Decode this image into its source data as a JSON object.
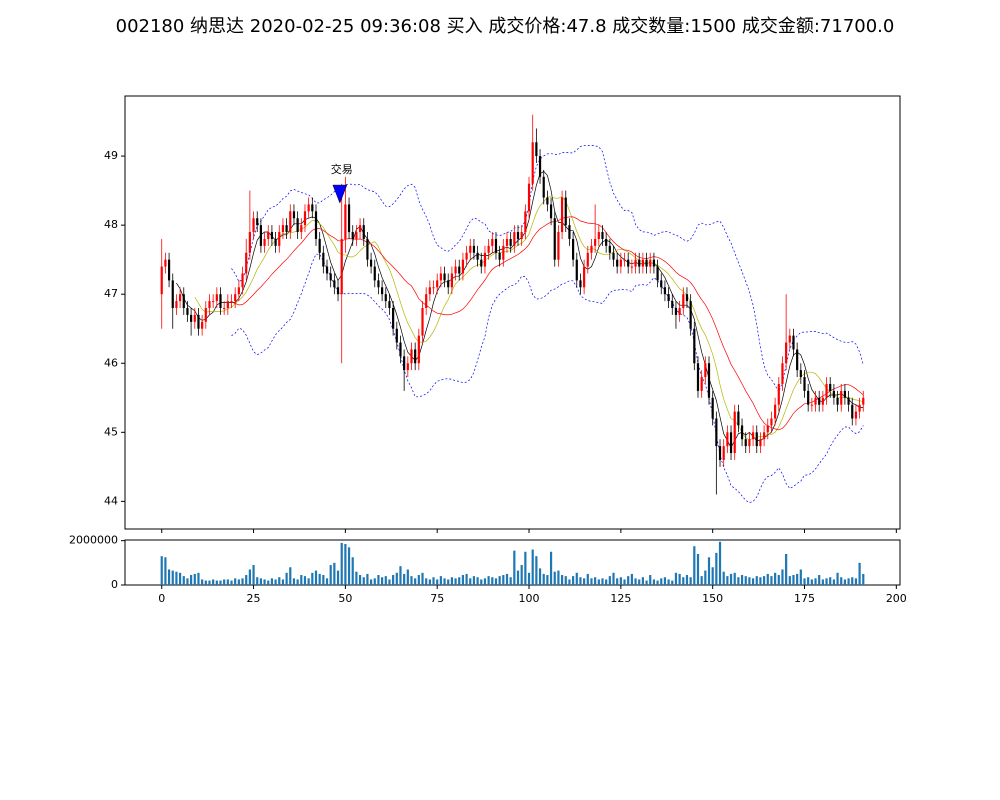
{
  "chart_data": {
    "type": "candlestick",
    "title": "002180 纳思达 2020-02-25 09:36:08 买入 成交价格:47.8 成交数量:1500 成交金额:71700.0",
    "open": [
      47.0,
      47.4,
      47.5,
      47.2,
      46.8,
      46.9,
      47.0,
      46.8,
      46.7,
      46.6,
      46.7,
      46.5,
      46.6,
      46.8,
      46.9,
      46.9,
      47.0,
      46.8,
      46.8,
      46.9,
      46.9,
      47.0,
      47.1,
      47.3,
      47.6,
      47.9,
      48.1,
      48.0,
      47.7,
      47.8,
      47.9,
      47.8,
      47.7,
      47.9,
      48.0,
      47.9,
      48.2,
      48.1,
      47.9,
      48.0,
      48.2,
      48.3,
      48.2,
      47.8,
      47.6,
      47.4,
      47.3,
      47.2,
      47.1,
      47.0,
      47.8,
      48.3,
      47.9,
      47.8,
      47.9,
      48.0,
      47.8,
      47.5,
      47.4,
      47.2,
      47.1,
      47.0,
      46.9,
      46.8,
      46.5,
      46.3,
      46.1,
      45.9,
      46.0,
      46.2,
      46.0,
      46.4,
      46.8,
      47.0,
      47.1,
      47.1,
      47.2,
      47.3,
      47.2,
      47.1,
      47.3,
      47.4,
      47.3,
      47.5,
      47.6,
      47.7,
      47.6,
      47.5,
      47.4,
      47.6,
      47.7,
      47.8,
      47.6,
      47.5,
      47.7,
      47.8,
      47.7,
      47.9,
      47.8,
      47.9,
      48.2,
      48.6,
      49.2,
      49.0,
      48.7,
      48.4,
      48.3,
      48.1,
      47.5,
      47.9,
      48.4,
      48.0,
      47.8,
      47.5,
      47.2,
      47.1,
      47.4,
      47.6,
      47.7,
      47.8,
      47.9,
      47.8,
      47.7,
      47.6,
      47.5,
      47.4,
      47.5,
      47.5,
      47.4,
      47.4,
      47.5,
      47.4,
      47.5,
      47.4,
      47.5,
      47.4,
      47.2,
      47.1,
      47.0,
      46.9,
      46.8,
      46.7,
      46.8,
      47.0,
      46.9,
      46.5,
      46.0,
      45.6,
      45.8,
      46.0,
      45.5,
      45.2,
      44.8,
      44.6,
      44.8,
      45.0,
      44.7,
      45.3,
      45.1,
      44.9,
      44.8,
      44.9,
      45.0,
      44.8,
      44.9,
      45.0,
      45.1,
      45.2,
      45.4,
      45.7,
      46.0,
      46.3,
      46.4,
      46.2,
      45.9,
      45.8,
      45.6,
      45.4,
      45.4,
      45.5,
      45.4,
      45.5,
      45.7,
      45.6,
      45.5,
      45.4,
      45.6,
      45.5,
      45.4,
      45.2,
      45.3,
      45.4
    ],
    "high": [
      47.8,
      47.6,
      47.6,
      47.3,
      47.0,
      47.1,
      47.1,
      46.9,
      46.8,
      46.8,
      46.8,
      46.7,
      46.9,
      47.0,
      47.0,
      47.1,
      47.1,
      46.9,
      47.0,
      47.0,
      47.1,
      47.2,
      47.4,
      47.8,
      48.5,
      48.2,
      48.2,
      48.1,
      47.9,
      48.0,
      48.0,
      47.9,
      48.0,
      48.1,
      48.1,
      48.3,
      48.3,
      48.2,
      48.1,
      48.3,
      48.4,
      48.4,
      48.3,
      47.9,
      47.7,
      47.5,
      47.4,
      47.3,
      47.2,
      48.6,
      48.7,
      48.4,
      48.0,
      48.0,
      48.1,
      48.1,
      47.9,
      47.6,
      47.5,
      47.3,
      47.2,
      47.1,
      47.0,
      46.9,
      46.6,
      46.4,
      46.2,
      46.1,
      46.3,
      46.3,
      46.5,
      46.9,
      47.1,
      47.2,
      47.2,
      47.3,
      47.4,
      47.4,
      47.3,
      47.4,
      47.5,
      47.5,
      47.6,
      47.7,
      47.8,
      47.8,
      47.7,
      47.6,
      47.7,
      47.8,
      47.9,
      47.9,
      47.7,
      47.8,
      47.9,
      47.9,
      48.0,
      48.0,
      48.0,
      48.3,
      48.7,
      49.6,
      49.4,
      49.1,
      48.8,
      48.5,
      48.4,
      48.2,
      48.0,
      48.5,
      48.5,
      48.1,
      47.9,
      47.6,
      47.3,
      47.5,
      47.7,
      47.8,
      48.3,
      48.0,
      48.0,
      47.9,
      47.8,
      47.7,
      47.6,
      47.6,
      47.6,
      47.6,
      47.5,
      47.6,
      47.6,
      47.6,
      47.6,
      47.6,
      47.6,
      47.5,
      47.3,
      47.2,
      47.1,
      47.0,
      46.9,
      46.9,
      47.1,
      47.1,
      47.0,
      46.6,
      46.1,
      45.9,
      46.1,
      46.1,
      45.6,
      45.3,
      44.9,
      44.9,
      45.1,
      45.1,
      45.4,
      45.4,
      45.2,
      45.0,
      45.0,
      45.1,
      45.1,
      45.0,
      45.1,
      45.2,
      45.3,
      45.5,
      45.8,
      46.1,
      47.0,
      46.5,
      46.5,
      46.3,
      46.0,
      45.9,
      45.7,
      45.5,
      45.6,
      45.6,
      45.6,
      45.8,
      45.8,
      45.7,
      45.6,
      45.7,
      45.7,
      45.6,
      45.5,
      45.4,
      45.5,
      45.6
    ],
    "low": [
      46.5,
      47.3,
      47.1,
      46.5,
      46.7,
      46.8,
      46.7,
      46.6,
      46.4,
      46.5,
      46.4,
      46.4,
      46.5,
      46.7,
      46.8,
      46.8,
      46.7,
      46.7,
      46.7,
      46.8,
      46.8,
      46.9,
      47.0,
      47.2,
      47.5,
      47.8,
      47.9,
      47.6,
      47.6,
      47.7,
      47.7,
      47.6,
      47.6,
      47.8,
      47.8,
      47.8,
      48.0,
      47.8,
      47.8,
      47.9,
      48.1,
      48.1,
      47.7,
      47.5,
      47.3,
      47.2,
      47.1,
      47.0,
      46.9,
      46.0,
      47.6,
      47.8,
      47.7,
      47.7,
      47.8,
      47.7,
      47.4,
      47.3,
      47.1,
      47.0,
      46.9,
      46.8,
      46.7,
      46.4,
      46.2,
      46.0,
      45.6,
      45.8,
      45.9,
      45.9,
      45.9,
      46.3,
      46.7,
      46.9,
      47.0,
      47.0,
      47.1,
      47.1,
      47.0,
      47.0,
      47.2,
      47.2,
      47.2,
      47.4,
      47.5,
      47.5,
      47.4,
      47.3,
      47.3,
      47.5,
      47.6,
      47.5,
      47.4,
      47.4,
      47.6,
      47.6,
      47.6,
      47.7,
      47.7,
      47.8,
      48.1,
      48.5,
      48.9,
      48.6,
      48.3,
      48.2,
      48.0,
      47.4,
      47.4,
      47.8,
      47.9,
      47.7,
      47.4,
      47.1,
      47.0,
      47.0,
      47.3,
      47.5,
      47.6,
      47.7,
      47.7,
      47.6,
      47.5,
      47.4,
      47.3,
      47.3,
      47.4,
      47.3,
      47.3,
      47.3,
      47.3,
      47.3,
      47.3,
      47.3,
      47.3,
      47.1,
      47.0,
      46.9,
      46.8,
      46.7,
      46.5,
      46.6,
      46.7,
      46.8,
      46.4,
      45.9,
      45.5,
      45.5,
      45.7,
      45.4,
      45.1,
      44.1,
      44.5,
      44.5,
      44.7,
      44.6,
      44.6,
      45.0,
      44.8,
      44.7,
      44.7,
      44.8,
      44.7,
      44.7,
      44.8,
      44.9,
      45.0,
      45.1,
      45.3,
      45.6,
      45.9,
      46.2,
      46.1,
      45.8,
      45.7,
      45.5,
      45.3,
      45.3,
      45.3,
      45.3,
      45.3,
      45.4,
      45.5,
      45.4,
      45.3,
      45.3,
      45.4,
      45.3,
      45.1,
      45.1,
      45.2,
      45.3
    ],
    "close": [
      47.4,
      47.5,
      47.2,
      46.8,
      46.9,
      47.0,
      46.8,
      46.7,
      46.6,
      46.7,
      46.5,
      46.6,
      46.8,
      46.9,
      46.9,
      47.0,
      46.8,
      46.8,
      46.9,
      46.9,
      47.0,
      47.1,
      47.3,
      47.6,
      47.9,
      48.1,
      48.0,
      47.7,
      47.8,
      47.9,
      47.8,
      47.7,
      47.9,
      48.0,
      47.9,
      48.2,
      48.1,
      47.9,
      48.0,
      48.2,
      48.3,
      48.2,
      47.8,
      47.6,
      47.4,
      47.3,
      47.2,
      47.1,
      47.0,
      47.8,
      48.3,
      47.9,
      47.8,
      47.9,
      48.0,
      47.8,
      47.5,
      47.4,
      47.2,
      47.1,
      47.0,
      46.9,
      46.8,
      46.5,
      46.3,
      46.1,
      45.9,
      46.0,
      46.2,
      46.0,
      46.4,
      46.8,
      47.0,
      47.1,
      47.1,
      47.2,
      47.3,
      47.2,
      47.1,
      47.3,
      47.4,
      47.3,
      47.5,
      47.6,
      47.7,
      47.6,
      47.5,
      47.4,
      47.6,
      47.7,
      47.8,
      47.6,
      47.5,
      47.7,
      47.8,
      47.7,
      47.9,
      47.8,
      47.9,
      48.2,
      48.6,
      49.2,
      49.0,
      48.7,
      48.4,
      48.3,
      48.1,
      47.5,
      47.9,
      48.4,
      48.0,
      47.8,
      47.5,
      47.2,
      47.1,
      47.4,
      47.6,
      47.7,
      47.8,
      47.9,
      47.8,
      47.7,
      47.6,
      47.5,
      47.4,
      47.5,
      47.5,
      47.4,
      47.4,
      47.5,
      47.4,
      47.5,
      47.4,
      47.5,
      47.4,
      47.2,
      47.1,
      47.0,
      46.9,
      46.8,
      46.7,
      46.8,
      47.0,
      46.9,
      46.5,
      46.0,
      45.6,
      45.8,
      46.0,
      45.5,
      45.2,
      44.8,
      44.6,
      44.8,
      45.0,
      44.7,
      45.3,
      45.1,
      44.9,
      44.8,
      44.9,
      45.0,
      44.8,
      44.9,
      45.0,
      45.1,
      45.2,
      45.4,
      45.7,
      46.0,
      46.3,
      46.4,
      46.2,
      45.9,
      45.8,
      45.6,
      45.4,
      45.4,
      45.5,
      45.4,
      45.5,
      45.7,
      45.6,
      45.5,
      45.4,
      45.6,
      45.5,
      45.4,
      45.2,
      45.3,
      45.4,
      45.5
    ],
    "volume": [
      1300000,
      1250000,
      700000,
      650000,
      600000,
      550000,
      400000,
      300000,
      450000,
      500000,
      550000,
      250000,
      200000,
      200000,
      250000,
      200000,
      200000,
      250000,
      250000,
      200000,
      300000,
      250000,
      300000,
      450000,
      700000,
      900000,
      350000,
      300000,
      250000,
      200000,
      300000,
      250000,
      350000,
      250000,
      550000,
      800000,
      300000,
      250000,
      450000,
      400000,
      300000,
      550000,
      650000,
      500000,
      450000,
      300000,
      900000,
      1000000,
      650000,
      1900000,
      1850000,
      1700000,
      1250000,
      600000,
      450000,
      350000,
      500000,
      250000,
      300000,
      450000,
      350000,
      400000,
      250000,
      450000,
      550000,
      850000,
      500000,
      700000,
      400000,
      300000,
      450000,
      550000,
      300000,
      250000,
      350000,
      250000,
      400000,
      300000,
      250000,
      350000,
      300000,
      350000,
      450000,
      500000,
      300000,
      400000,
      350000,
      250000,
      300000,
      400000,
      350000,
      300000,
      400000,
      450000,
      500000,
      350000,
      1550000,
      650000,
      900000,
      1500000,
      550000,
      1600000,
      1300000,
      750000,
      500000,
      450000,
      1500000,
      600000,
      650000,
      450000,
      400000,
      250000,
      400000,
      550000,
      350000,
      300000,
      500000,
      300000,
      350000,
      250000,
      300000,
      250000,
      400000,
      550000,
      300000,
      350000,
      250000,
      400000,
      500000,
      300000,
      250000,
      350000,
      200000,
      450000,
      250000,
      200000,
      300000,
      350000,
      250000,
      200000,
      550000,
      500000,
      350000,
      450000,
      350000,
      1750000,
      1400000,
      400000,
      650000,
      1250000,
      800000,
      1450000,
      1950000,
      600000,
      400000,
      500000,
      550000,
      350000,
      450000,
      400000,
      350000,
      300000,
      400000,
      350000,
      400000,
      500000,
      400000,
      550000,
      450000,
      700000,
      1400000,
      400000,
      450000,
      500000,
      700000,
      300000,
      350000,
      250000,
      300000,
      450000,
      250000,
      300000,
      350000,
      250000,
      550000,
      350000,
      250000,
      300000,
      350000,
      300000,
      1000000,
      500000
    ],
    "colorup": "#ff0000",
    "colordown": "#000000",
    "volume_color": "#1f77b4",
    "xlim": [
      -10,
      201
    ],
    "xticks": [
      0,
      25,
      50,
      75,
      100,
      125,
      150,
      175,
      200
    ],
    "ylim": [
      43.6,
      49.87
    ],
    "yticks": [
      44,
      45,
      46,
      47,
      48,
      49
    ],
    "volume_ylim": [
      0,
      2030000
    ],
    "volume_yticks": [
      0,
      2000000
    ],
    "annotation": {
      "text": "交易",
      "x": 49,
      "y": 48.8
    },
    "marker": {
      "x": 48.5,
      "y": 48.45,
      "color": "#0000ff"
    }
  }
}
